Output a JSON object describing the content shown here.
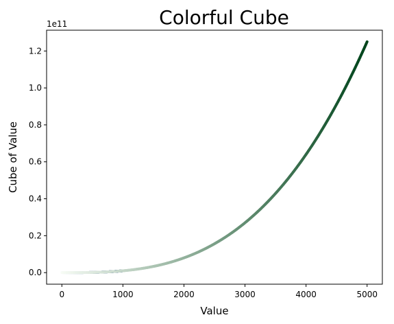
{
  "chart_data": {
    "type": "scatter",
    "title": "Colorful Cube",
    "xlabel": "Value",
    "ylabel": "Cube of Value",
    "xlim": [
      -250,
      5250
    ],
    "ylim": [
      -0.0625,
      1.3125
    ],
    "y_offset_label": "1e11",
    "y_multiplier": 100000000000,
    "x_ticks": [
      0,
      1000,
      2000,
      3000,
      4000,
      5000
    ],
    "x_tick_labels": [
      "0",
      "1000",
      "2000",
      "3000",
      "4000",
      "5000"
    ],
    "y_ticks": [
      0.0,
      0.2,
      0.4,
      0.6,
      0.8,
      1.0,
      1.2
    ],
    "y_tick_labels": [
      "0.0",
      "0.2",
      "0.4",
      "0.6",
      "0.8",
      "1.0",
      "1.2"
    ],
    "grid": false,
    "series": [
      {
        "x_range": [
          1,
          1000
        ],
        "function": "cube",
        "colormap": "Blues",
        "color_start": "#f7fbff",
        "color_end": "#08306b"
      },
      {
        "x_range": [
          1,
          5000
        ],
        "function": "cube",
        "colormap": "Greens",
        "color_start": "#f7fcf5",
        "color_end": "#00441b"
      }
    ]
  }
}
